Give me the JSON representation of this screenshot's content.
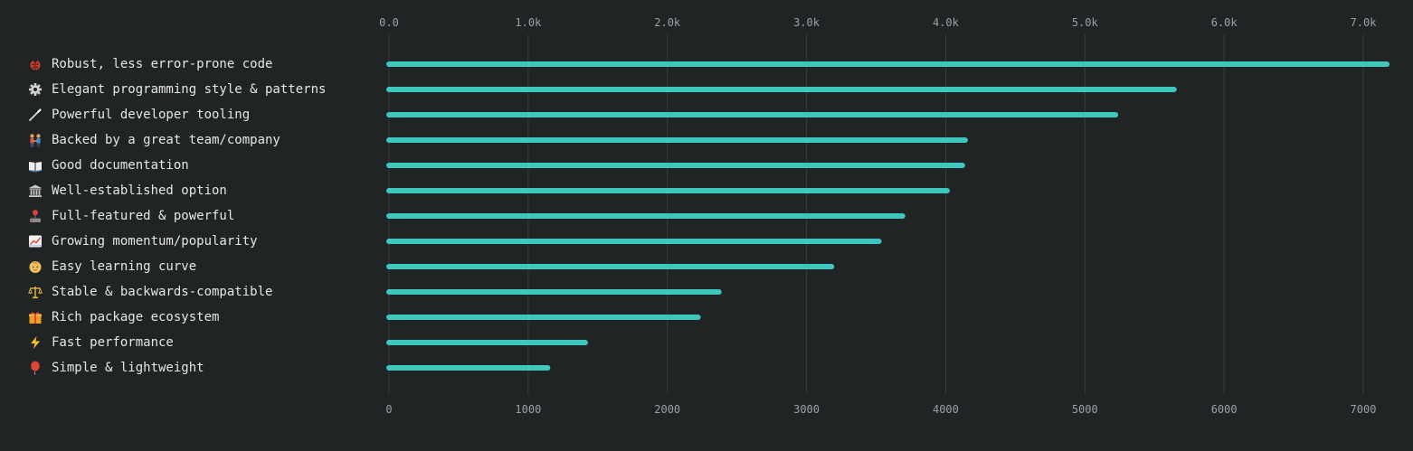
{
  "chart_data": {
    "type": "bar",
    "orientation": "horizontal",
    "categories": [
      {
        "icon": "ladybug-icon",
        "label": "Robust, less error-prone code"
      },
      {
        "icon": "gear-icon",
        "label": "Elegant programming style & patterns"
      },
      {
        "icon": "wand-icon",
        "label": "Powerful developer tooling"
      },
      {
        "icon": "people-holding-hands-icon",
        "label": "Backed by a great team/company"
      },
      {
        "icon": "open-book-icon",
        "label": "Good documentation"
      },
      {
        "icon": "classical-building-icon",
        "label": "Well-established option"
      },
      {
        "icon": "joystick-icon",
        "label": "Full-featured & powerful"
      },
      {
        "icon": "chart-increasing-icon",
        "label": "Growing momentum/popularity"
      },
      {
        "icon": "baby-face-icon",
        "label": "Easy learning curve"
      },
      {
        "icon": "balance-scale-icon",
        "label": "Stable & backwards-compatible"
      },
      {
        "icon": "gift-icon",
        "label": "Rich package ecosystem"
      },
      {
        "icon": "lightning-icon",
        "label": "Fast performance"
      },
      {
        "icon": "balloon-icon",
        "label": "Simple & lightweight"
      }
    ],
    "values": [
      7170,
      5640,
      5220,
      4140,
      4120,
      4010,
      3690,
      3520,
      3180,
      2370,
      2220,
      1410,
      1140
    ],
    "xlim": [
      0,
      7200
    ],
    "top_ticks": [
      {
        "value": 0,
        "label": "0.0"
      },
      {
        "value": 1000,
        "label": "1.0k"
      },
      {
        "value": 2000,
        "label": "2.0k"
      },
      {
        "value": 3000,
        "label": "3.0k"
      },
      {
        "value": 4000,
        "label": "4.0k"
      },
      {
        "value": 5000,
        "label": "5.0k"
      },
      {
        "value": 6000,
        "label": "6.0k"
      },
      {
        "value": 7000,
        "label": "7.0k"
      }
    ],
    "bottom_ticks": [
      {
        "value": 0,
        "label": "0"
      },
      {
        "value": 1000,
        "label": "1000"
      },
      {
        "value": 2000,
        "label": "2000"
      },
      {
        "value": 3000,
        "label": "3000"
      },
      {
        "value": 4000,
        "label": "4000"
      },
      {
        "value": 5000,
        "label": "5000"
      },
      {
        "value": 6000,
        "label": "6000"
      },
      {
        "value": 7000,
        "label": "7000"
      }
    ],
    "grid": true,
    "colors": {
      "bar": "#3ec6c0",
      "grid": "#3a3d3f",
      "tick_label": "#9aa0a4",
      "label": "#e6e6e6",
      "background": "#212425"
    },
    "title": "",
    "xlabel": "",
    "ylabel": ""
  }
}
